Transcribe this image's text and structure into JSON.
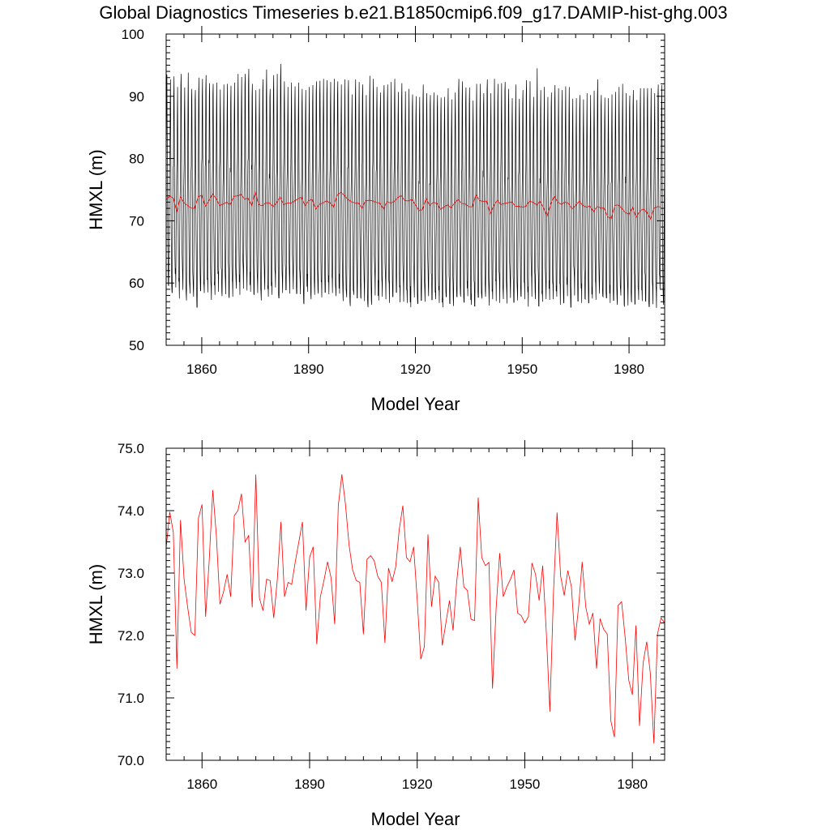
{
  "page_title": "Global Diagnostics Timeseries b.e21.B1850cmip6.f09_g17.DAMIP-hist-ghg.003",
  "colors": {
    "monthly_line": "#000000",
    "annual_line": "#ff0000",
    "axes": "#000000"
  },
  "chart_data": [
    {
      "type": "line",
      "xlabel": "Model Year",
      "ylabel": "HMXL (m)",
      "xlim": [
        1850,
        1990
      ],
      "ylim": [
        50,
        100
      ],
      "x_major_ticks": [
        1860,
        1890,
        1920,
        1950,
        1980
      ],
      "x_tick_labels": [
        "1860",
        "1890",
        "1920",
        "1950",
        "1980"
      ],
      "y_major_ticks": [
        50,
        60,
        70,
        80,
        90,
        100
      ],
      "y_tick_labels": [
        "50",
        "60",
        "70",
        "80",
        "90",
        "100"
      ],
      "grid": false,
      "series": [
        {
          "kind": "monthly",
          "color": "#000000",
          "x_start": 1850,
          "samples_per_year": 12,
          "annual_max": [
            93.5,
            92.7,
            93.2,
            91.5,
            93.6,
            91.4,
            93.8,
            91.2,
            91.0,
            93.0,
            92.8,
            93.4,
            92.1,
            92.0,
            92.2,
            91.1,
            91.9,
            92.0,
            91.7,
            92.2,
            93.6,
            93.1,
            93.6,
            94.4,
            92.0,
            91.0,
            91.2,
            92.7,
            94.3,
            91.2,
            93.4,
            93.6,
            95.2,
            92.4,
            91.5,
            92.2,
            91.6,
            92.2,
            91.2,
            91.0,
            91.5,
            91.8,
            92.4,
            92.5,
            92.8,
            92.6,
            92.3,
            92.8,
            92.4,
            91.9,
            92.7,
            92.6,
            90.3,
            92.7,
            92.3,
            91.9,
            90.2,
            93.3,
            92.8,
            91.5,
            90.6,
            91.8,
            91.9,
            92.3,
            92.8,
            90.7,
            92.1,
            90.8,
            91.2,
            90.3,
            90.0,
            89.9,
            91.9,
            90.5,
            90.2,
            90.6,
            90.2,
            89.8,
            89.9,
            91.3,
            89.5,
            90.6,
            92.8,
            92.4,
            91.4,
            91.4,
            89.3,
            92.0,
            92.0,
            90.5,
            92.7,
            90.5,
            92.8,
            92.0,
            92.1,
            92.3,
            91.2,
            89.7,
            91.9,
            89.6,
            91.0,
            92.6,
            92.4,
            89.9,
            94.5,
            91.0,
            91.5,
            89.9,
            90.6,
            91.8,
            91.3,
            91.0,
            91.6,
            91.5,
            89.6,
            89.7,
            90.2,
            89.5,
            90.5,
            90.2,
            90.9,
            92.7,
            90.2,
            89.8,
            89.7,
            90.3,
            90.7,
            91.5,
            92.0,
            90.5,
            90.1,
            91.0,
            89.4,
            91.3,
            91.3,
            91.3,
            91.3,
            90.5,
            91.9,
            91.8
          ],
          "annual_min": [
            59.6,
            58.4,
            59.3,
            57.5,
            58.9,
            57.2,
            58.3,
            57.8,
            56.1,
            58.7,
            58.4,
            58.5,
            57.3,
            58.1,
            58.6,
            57.9,
            58.2,
            57.6,
            57.8,
            59.1,
            58.1,
            59.1,
            58.8,
            58.6,
            58.1,
            58.4,
            57.2,
            58.9,
            57.8,
            58.1,
            59.3,
            57.6,
            58.4,
            58.9,
            58.3,
            59.0,
            58.3,
            58.2,
            56.6,
            58.6,
            57.4,
            58.1,
            58.3,
            57.7,
            58.5,
            58.2,
            58.4,
            57.9,
            58.3,
            57.1,
            57.7,
            56.3,
            58.1,
            57.6,
            57.5,
            57.1,
            56.1,
            56.5,
            58.0,
            57.2,
            57.8,
            57.4,
            56.8,
            57.8,
            58.5,
            56.9,
            57.0,
            56.8,
            56.1,
            57.7,
            56.7,
            57.2,
            57.0,
            57.9,
            57.3,
            57.4,
            56.8,
            56.1,
            57.8,
            56.7,
            56.3,
            57.8,
            57.8,
            56.9,
            57.9,
            56.5,
            56.3,
            57.7,
            57.5,
            57.8,
            56.4,
            57.4,
            57.1,
            56.8,
            57.4,
            56.7,
            57.6,
            56.9,
            57.2,
            57.8,
            57.4,
            56.2,
            57.8,
            57.4,
            56.3,
            57.0,
            57.4,
            57.3,
            57.4,
            57.8,
            56.5,
            56.8,
            57.9,
            56.1,
            58.0,
            57.1,
            56.8,
            57.4,
            56.8,
            57.5,
            57.3,
            58.3,
            57.8,
            57.6,
            56.8,
            57.2,
            56.5,
            58.0,
            56.2,
            56.4,
            56.9,
            56.6,
            57.3,
            57.1,
            57.1,
            56.2,
            56.6,
            56.0,
            58.9,
            56.5
          ]
        },
        {
          "kind": "annual",
          "color": "#ff0000",
          "x": [
            1850,
            1851,
            1852,
            1853,
            1854,
            1855,
            1856,
            1857,
            1858,
            1859,
            1860,
            1861,
            1862,
            1863,
            1864,
            1865,
            1866,
            1867,
            1868,
            1869,
            1870,
            1871,
            1872,
            1873,
            1874,
            1875,
            1876,
            1877,
            1878,
            1879,
            1880,
            1881,
            1882,
            1883,
            1884,
            1885,
            1886,
            1887,
            1888,
            1889,
            1890,
            1891,
            1892,
            1893,
            1894,
            1895,
            1896,
            1897,
            1898,
            1899,
            1900,
            1901,
            1902,
            1903,
            1904,
            1905,
            1906,
            1907,
            1908,
            1909,
            1910,
            1911,
            1912,
            1913,
            1914,
            1915,
            1916,
            1917,
            1918,
            1919,
            1920,
            1921,
            1922,
            1923,
            1924,
            1925,
            1926,
            1927,
            1928,
            1929,
            1930,
            1931,
            1932,
            1933,
            1934,
            1935,
            1936,
            1937,
            1938,
            1939,
            1940,
            1941,
            1942,
            1943,
            1944,
            1945,
            1946,
            1947,
            1948,
            1949,
            1950,
            1951,
            1952,
            1953,
            1954,
            1955,
            1956,
            1957,
            1958,
            1959,
            1960,
            1961,
            1962,
            1963,
            1964,
            1965,
            1966,
            1967,
            1968,
            1969,
            1970,
            1971,
            1972,
            1973,
            1974,
            1975,
            1976,
            1977,
            1978,
            1979,
            1980,
            1981,
            1982,
            1983,
            1984,
            1985,
            1986,
            1987,
            1988,
            1989
          ],
          "y": [
            73.4,
            73.98,
            73.65,
            71.47,
            73.85,
            72.9,
            72.45,
            72.05,
            72.0,
            73.88,
            74.1,
            72.3,
            73.2,
            74.33,
            73.6,
            72.5,
            72.7,
            72.98,
            72.62,
            73.92,
            74.0,
            74.27,
            73.5,
            73.6,
            72.45,
            74.58,
            72.6,
            72.4,
            72.9,
            72.88,
            72.28,
            72.9,
            73.82,
            72.62,
            72.85,
            72.82,
            73.18,
            73.5,
            73.82,
            72.4,
            73.25,
            73.42,
            71.86,
            72.62,
            72.88,
            73.18,
            72.92,
            72.18,
            74.08,
            74.58,
            74.1,
            73.45,
            73.05,
            72.88,
            72.85,
            72.02,
            73.22,
            73.28,
            73.2,
            72.95,
            72.85,
            71.88,
            73.08,
            72.86,
            73.1,
            73.7,
            74.08,
            73.25,
            73.18,
            73.42,
            72.58,
            71.62,
            71.82,
            73.62,
            72.46,
            72.95,
            72.85,
            71.84,
            72.2,
            72.56,
            72.08,
            72.85,
            73.42,
            72.78,
            72.72,
            72.26,
            72.24,
            74.21,
            73.25,
            73.12,
            73.17,
            71.15,
            72.42,
            73.32,
            72.62,
            72.78,
            72.9,
            73.05,
            72.36,
            72.32,
            72.2,
            72.3,
            73.16,
            72.98,
            72.56,
            73.12,
            72.05,
            70.78,
            72.68,
            73.97,
            72.95,
            72.64,
            73.04,
            72.78,
            71.92,
            72.45,
            73.18,
            72.46,
            72.18,
            72.36,
            71.47,
            72.27,
            72.1,
            72.02,
            70.63,
            70.37,
            72.48,
            72.54,
            71.96,
            71.28,
            71.05,
            72.16,
            70.55,
            71.56,
            71.9,
            71.4,
            70.27,
            72.02,
            72.28,
            72.2
          ]
        }
      ]
    },
    {
      "type": "line",
      "xlabel": "Model Year",
      "ylabel": "HMXL (m)",
      "xlim": [
        1850,
        1989
      ],
      "ylim": [
        70.0,
        75.0
      ],
      "x_major_ticks": [
        1860,
        1890,
        1920,
        1950,
        1980
      ],
      "x_tick_labels": [
        "1860",
        "1890",
        "1920",
        "1950",
        "1980"
      ],
      "y_major_ticks": [
        70,
        71,
        72,
        73,
        74,
        75
      ],
      "y_tick_labels": [
        "70.0",
        "71.0",
        "72.0",
        "73.0",
        "74.0",
        "75.0"
      ],
      "grid": false,
      "series": [
        {
          "kind": "annual",
          "color": "#ff0000",
          "x": [
            1850,
            1851,
            1852,
            1853,
            1854,
            1855,
            1856,
            1857,
            1858,
            1859,
            1860,
            1861,
            1862,
            1863,
            1864,
            1865,
            1866,
            1867,
            1868,
            1869,
            1870,
            1871,
            1872,
            1873,
            1874,
            1875,
            1876,
            1877,
            1878,
            1879,
            1880,
            1881,
            1882,
            1883,
            1884,
            1885,
            1886,
            1887,
            1888,
            1889,
            1890,
            1891,
            1892,
            1893,
            1894,
            1895,
            1896,
            1897,
            1898,
            1899,
            1900,
            1901,
            1902,
            1903,
            1904,
            1905,
            1906,
            1907,
            1908,
            1909,
            1910,
            1911,
            1912,
            1913,
            1914,
            1915,
            1916,
            1917,
            1918,
            1919,
            1920,
            1921,
            1922,
            1923,
            1924,
            1925,
            1926,
            1927,
            1928,
            1929,
            1930,
            1931,
            1932,
            1933,
            1934,
            1935,
            1936,
            1937,
            1938,
            1939,
            1940,
            1941,
            1942,
            1943,
            1944,
            1945,
            1946,
            1947,
            1948,
            1949,
            1950,
            1951,
            1952,
            1953,
            1954,
            1955,
            1956,
            1957,
            1958,
            1959,
            1960,
            1961,
            1962,
            1963,
            1964,
            1965,
            1966,
            1967,
            1968,
            1969,
            1970,
            1971,
            1972,
            1973,
            1974,
            1975,
            1976,
            1977,
            1978,
            1979,
            1980,
            1981,
            1982,
            1983,
            1984,
            1985,
            1986,
            1987,
            1988,
            1989
          ],
          "y": [
            73.4,
            73.98,
            73.65,
            71.47,
            73.85,
            72.9,
            72.45,
            72.05,
            72.0,
            73.88,
            74.1,
            72.3,
            73.2,
            74.33,
            73.6,
            72.5,
            72.7,
            72.98,
            72.62,
            73.92,
            74.0,
            74.27,
            73.5,
            73.6,
            72.45,
            74.58,
            72.6,
            72.4,
            72.9,
            72.88,
            72.28,
            72.9,
            73.82,
            72.62,
            72.85,
            72.82,
            73.18,
            73.5,
            73.82,
            72.4,
            73.25,
            73.42,
            71.86,
            72.62,
            72.88,
            73.18,
            72.92,
            72.18,
            74.08,
            74.58,
            74.1,
            73.45,
            73.05,
            72.88,
            72.85,
            72.02,
            73.22,
            73.28,
            73.2,
            72.95,
            72.85,
            71.88,
            73.08,
            72.86,
            73.1,
            73.7,
            74.08,
            73.25,
            73.18,
            73.42,
            72.58,
            71.62,
            71.82,
            73.62,
            72.46,
            72.95,
            72.85,
            71.84,
            72.2,
            72.56,
            72.08,
            72.85,
            73.42,
            72.78,
            72.72,
            72.26,
            72.24,
            74.21,
            73.25,
            73.12,
            73.17,
            71.15,
            72.42,
            73.32,
            72.62,
            72.78,
            72.9,
            73.05,
            72.36,
            72.32,
            72.2,
            72.3,
            73.16,
            72.98,
            72.56,
            73.12,
            72.05,
            70.78,
            72.68,
            73.97,
            72.95,
            72.64,
            73.04,
            72.78,
            71.92,
            72.45,
            73.18,
            72.46,
            72.18,
            72.36,
            71.47,
            72.27,
            72.1,
            72.02,
            70.63,
            70.37,
            72.48,
            72.54,
            71.96,
            71.28,
            71.05,
            72.16,
            70.55,
            71.56,
            71.9,
            71.4,
            70.27,
            72.02,
            72.28,
            72.2
          ]
        }
      ]
    }
  ]
}
